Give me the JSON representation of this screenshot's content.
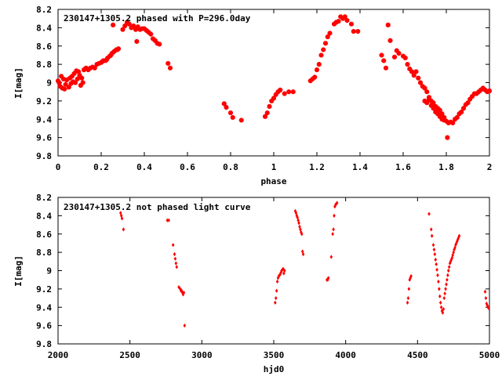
{
  "chart_data": [
    {
      "type": "scatter",
      "title": "230147+1305.2 phased with P=296.0day",
      "xlabel": "phase",
      "ylabel": "I[mag]",
      "xlim": [
        0,
        2
      ],
      "ylim": [
        9.8,
        8.2
      ],
      "y_inverted": true,
      "grid": false,
      "marker_color": "#ff0000",
      "x_ticks": [
        "0",
        "0.2",
        "0.4",
        "0.6",
        "0.8",
        "1",
        "1.2",
        "1.4",
        "1.6",
        "1.8",
        "2"
      ],
      "y_ticks": [
        "8.2",
        "8.4",
        "8.6",
        "8.8",
        "9",
        "9.2",
        "9.4",
        "9.6",
        "9.8"
      ],
      "x_tick_values": [
        0,
        0.2,
        0.4,
        0.6,
        0.8,
        1.0,
        1.2,
        1.4,
        1.6,
        1.8,
        2.0
      ],
      "y_tick_values": [
        8.2,
        8.4,
        8.6,
        8.8,
        9.0,
        9.2,
        9.4,
        9.6,
        9.8
      ],
      "points": [
        [
          0.0,
          8.98
        ],
        [
          0.005,
          9.0
        ],
        [
          0.01,
          9.04
        ],
        [
          0.015,
          8.93
        ],
        [
          0.02,
          9.06
        ],
        [
          0.025,
          8.96
        ],
        [
          0.03,
          9.07
        ],
        [
          0.035,
          9.02
        ],
        [
          0.04,
          8.97
        ],
        [
          0.05,
          9.05
        ],
        [
          0.055,
          8.95
        ],
        [
          0.06,
          9.01
        ],
        [
          0.065,
          8.93
        ],
        [
          0.07,
          8.99
        ],
        [
          0.075,
          8.9
        ],
        [
          0.08,
          9.0
        ],
        [
          0.085,
          8.87
        ],
        [
          0.09,
          8.96
        ],
        [
          0.095,
          8.88
        ],
        [
          0.1,
          8.92
        ],
        [
          0.105,
          9.03
        ],
        [
          0.11,
          8.95
        ],
        [
          0.115,
          9.0
        ],
        [
          0.12,
          8.86
        ],
        [
          0.125,
          8.85
        ],
        [
          0.13,
          8.84
        ],
        [
          0.14,
          8.86
        ],
        [
          0.15,
          8.84
        ],
        [
          0.16,
          8.83
        ],
        [
          0.17,
          8.84
        ],
        [
          0.18,
          8.8
        ],
        [
          0.19,
          8.79
        ],
        [
          0.2,
          8.78
        ],
        [
          0.205,
          8.77
        ],
        [
          0.21,
          8.76
        ],
        [
          0.22,
          8.76
        ],
        [
          0.225,
          8.75
        ],
        [
          0.23,
          8.73
        ],
        [
          0.24,
          8.71
        ],
        [
          0.245,
          8.7
        ],
        [
          0.25,
          8.68
        ],
        [
          0.255,
          8.37
        ],
        [
          0.26,
          8.66
        ],
        [
          0.27,
          8.64
        ],
        [
          0.275,
          8.64
        ],
        [
          0.28,
          8.63
        ],
        [
          0.3,
          8.42
        ],
        [
          0.31,
          8.38
        ],
        [
          0.32,
          8.34
        ],
        [
          0.33,
          8.36
        ],
        [
          0.34,
          8.4
        ],
        [
          0.35,
          8.38
        ],
        [
          0.36,
          8.42
        ],
        [
          0.365,
          8.55
        ],
        [
          0.37,
          8.39
        ],
        [
          0.38,
          8.42
        ],
        [
          0.39,
          8.41
        ],
        [
          0.4,
          8.41
        ],
        [
          0.41,
          8.43
        ],
        [
          0.42,
          8.45
        ],
        [
          0.43,
          8.47
        ],
        [
          0.44,
          8.52
        ],
        [
          0.45,
          8.54
        ],
        [
          0.46,
          8.57
        ],
        [
          0.47,
          8.58
        ],
        [
          0.51,
          8.79
        ],
        [
          0.52,
          8.84
        ],
        [
          0.77,
          9.23
        ],
        [
          0.78,
          9.27
        ],
        [
          0.8,
          9.33
        ],
        [
          0.81,
          9.38
        ],
        [
          0.85,
          9.41
        ],
        [
          0.96,
          9.37
        ],
        [
          0.97,
          9.33
        ],
        [
          0.98,
          9.26
        ],
        [
          0.99,
          9.2
        ],
        [
          1.0,
          9.17
        ],
        [
          1.01,
          9.13
        ],
        [
          1.02,
          9.1
        ],
        [
          1.03,
          9.08
        ],
        [
          1.05,
          9.12
        ],
        [
          1.07,
          9.1
        ],
        [
          1.09,
          9.1
        ],
        [
          1.17,
          8.98
        ],
        [
          1.18,
          8.96
        ],
        [
          1.19,
          8.94
        ],
        [
          1.2,
          8.86
        ],
        [
          1.21,
          8.8
        ],
        [
          1.22,
          8.7
        ],
        [
          1.23,
          8.64
        ],
        [
          1.24,
          8.57
        ],
        [
          1.25,
          8.5
        ],
        [
          1.26,
          8.46
        ],
        [
          1.28,
          8.36
        ],
        [
          1.29,
          8.34
        ],
        [
          1.3,
          8.33
        ],
        [
          1.31,
          8.28
        ],
        [
          1.32,
          8.3
        ],
        [
          1.33,
          8.28
        ],
        [
          1.34,
          8.32
        ],
        [
          1.36,
          8.36
        ],
        [
          1.37,
          8.44
        ],
        [
          1.39,
          8.44
        ],
        [
          1.5,
          8.7
        ],
        [
          1.51,
          8.76
        ],
        [
          1.52,
          8.84
        ],
        [
          1.53,
          8.37
        ],
        [
          1.54,
          8.54
        ],
        [
          1.56,
          8.72
        ],
        [
          1.57,
          8.65
        ],
        [
          1.58,
          8.68
        ],
        [
          1.6,
          8.71
        ],
        [
          1.61,
          8.73
        ],
        [
          1.62,
          8.8
        ],
        [
          1.63,
          8.85
        ],
        [
          1.64,
          8.88
        ],
        [
          1.65,
          8.92
        ],
        [
          1.66,
          8.88
        ],
        [
          1.67,
          8.95
        ],
        [
          1.68,
          9.0
        ],
        [
          1.69,
          9.04
        ],
        [
          1.7,
          9.06
        ],
        [
          1.71,
          9.1
        ],
        [
          1.72,
          9.16
        ],
        [
          1.73,
          9.2
        ],
        [
          1.74,
          9.22
        ],
        [
          1.75,
          9.26
        ],
        [
          1.76,
          9.28
        ],
        [
          1.77,
          9.3
        ],
        [
          1.78,
          9.34
        ],
        [
          1.79,
          9.38
        ],
        [
          1.8,
          9.42
        ],
        [
          1.805,
          9.6
        ],
        [
          1.81,
          9.44
        ],
        [
          1.82,
          9.43
        ],
        [
          1.83,
          9.44
        ],
        [
          1.84,
          9.4
        ],
        [
          1.85,
          9.38
        ],
        [
          1.86,
          9.34
        ],
        [
          1.87,
          9.32
        ],
        [
          1.88,
          9.28
        ],
        [
          1.89,
          9.24
        ],
        [
          1.9,
          9.22
        ],
        [
          1.91,
          9.18
        ],
        [
          1.92,
          9.15
        ],
        [
          1.93,
          9.12
        ],
        [
          1.94,
          9.12
        ],
        [
          1.95,
          9.1
        ],
        [
          1.96,
          9.08
        ],
        [
          1.97,
          9.06
        ],
        [
          1.98,
          9.08
        ],
        [
          1.99,
          9.1
        ],
        [
          2.0,
          9.09
        ],
        [
          1.7,
          9.2
        ],
        [
          1.71,
          9.22
        ],
        [
          1.72,
          9.18
        ],
        [
          1.73,
          9.25
        ],
        [
          1.74,
          9.28
        ],
        [
          1.75,
          9.32
        ],
        [
          1.76,
          9.34
        ],
        [
          1.77,
          9.37
        ],
        [
          1.78,
          9.4
        ],
        [
          1.79,
          9.41
        ]
      ]
    },
    {
      "type": "scatter",
      "title": "230147+1305.2 not phased light curve",
      "xlabel": "hjd0",
      "ylabel": "I[mag]",
      "xlim": [
        2000,
        5000
      ],
      "ylim": [
        9.8,
        8.2
      ],
      "y_inverted": true,
      "grid": false,
      "marker_color": "#ff0000",
      "x_ticks": [
        "2000",
        "2500",
        "3000",
        "3500",
        "4000",
        "4500",
        "5000"
      ],
      "y_ticks": [
        "8.2",
        "8.4",
        "8.6",
        "8.8",
        "9",
        "9.2",
        "9.4",
        "9.6",
        "9.8"
      ],
      "x_tick_values": [
        2000,
        2500,
        3000,
        3500,
        4000,
        4500,
        5000
      ],
      "y_tick_values": [
        8.2,
        8.4,
        8.6,
        8.8,
        9.0,
        9.2,
        9.4,
        9.6,
        9.8
      ],
      "points": [
        [
          2435,
          8.37
        ],
        [
          2440,
          8.4
        ],
        [
          2445,
          8.43
        ],
        [
          2455,
          8.55
        ],
        [
          2760,
          8.45
        ],
        [
          2770,
          8.45
        ],
        [
          2800,
          8.72
        ],
        [
          2810,
          8.82
        ],
        [
          2815,
          8.87
        ],
        [
          2820,
          8.92
        ],
        [
          2825,
          8.96
        ],
        [
          2840,
          9.18
        ],
        [
          2850,
          9.2
        ],
        [
          2855,
          9.22
        ],
        [
          2860,
          9.22
        ],
        [
          2865,
          9.24
        ],
        [
          2870,
          9.26
        ],
        [
          2875,
          9.24
        ],
        [
          2880,
          9.6
        ],
        [
          3510,
          9.35
        ],
        [
          3515,
          9.3
        ],
        [
          3520,
          9.22
        ],
        [
          3525,
          9.12
        ],
        [
          3530,
          9.08
        ],
        [
          3535,
          9.06
        ],
        [
          3540,
          9.05
        ],
        [
          3545,
          9.04
        ],
        [
          3550,
          9.02
        ],
        [
          3555,
          9.0
        ],
        [
          3560,
          8.99
        ],
        [
          3565,
          8.98
        ],
        [
          3570,
          9.03
        ],
        [
          3575,
          9.0
        ],
        [
          3650,
          8.35
        ],
        [
          3655,
          8.37
        ],
        [
          3660,
          8.4
        ],
        [
          3665,
          8.42
        ],
        [
          3670,
          8.45
        ],
        [
          3675,
          8.48
        ],
        [
          3680,
          8.52
        ],
        [
          3685,
          8.55
        ],
        [
          3690,
          8.58
        ],
        [
          3695,
          8.6
        ],
        [
          3700,
          8.79
        ],
        [
          3705,
          8.82
        ],
        [
          3870,
          9.1
        ],
        [
          3875,
          9.1
        ],
        [
          3880,
          9.08
        ],
        [
          3900,
          8.85
        ],
        [
          3910,
          8.6
        ],
        [
          3915,
          8.55
        ],
        [
          3920,
          8.4
        ],
        [
          3925,
          8.3
        ],
        [
          3930,
          8.28
        ],
        [
          3935,
          8.27
        ],
        [
          3940,
          8.26
        ],
        [
          4430,
          9.35
        ],
        [
          4435,
          9.3
        ],
        [
          4440,
          9.2
        ],
        [
          4445,
          9.1
        ],
        [
          4450,
          9.08
        ],
        [
          4455,
          9.06
        ],
        [
          4580,
          8.38
        ],
        [
          4595,
          8.55
        ],
        [
          4600,
          8.62
        ],
        [
          4610,
          8.72
        ],
        [
          4615,
          8.77
        ],
        [
          4620,
          8.82
        ],
        [
          4625,
          8.88
        ],
        [
          4630,
          8.93
        ],
        [
          4635,
          8.99
        ],
        [
          4640,
          9.05
        ],
        [
          4645,
          9.12
        ],
        [
          4650,
          9.2
        ],
        [
          4655,
          9.28
        ],
        [
          4660,
          9.35
        ],
        [
          4665,
          9.4
        ],
        [
          4670,
          9.44
        ],
        [
          4675,
          9.46
        ],
        [
          4680,
          9.42
        ],
        [
          4685,
          9.3
        ],
        [
          4690,
          9.25
        ],
        [
          4695,
          9.2
        ],
        [
          4700,
          9.15
        ],
        [
          4705,
          9.1
        ],
        [
          4710,
          9.05
        ],
        [
          4715,
          9.0
        ],
        [
          4720,
          8.96
        ],
        [
          4725,
          8.92
        ],
        [
          4730,
          8.9
        ],
        [
          4735,
          8.88
        ],
        [
          4740,
          8.86
        ],
        [
          4745,
          8.83
        ],
        [
          4750,
          8.8
        ],
        [
          4755,
          8.77
        ],
        [
          4760,
          8.75
        ],
        [
          4765,
          8.72
        ],
        [
          4770,
          8.7
        ],
        [
          4775,
          8.68
        ],
        [
          4780,
          8.66
        ],
        [
          4785,
          8.64
        ],
        [
          4790,
          8.62
        ],
        [
          4970,
          9.23
        ],
        [
          4975,
          9.3
        ],
        [
          4980,
          9.36
        ],
        [
          4985,
          9.38
        ],
        [
          4990,
          9.4
        ],
        [
          4995,
          9.41
        ]
      ]
    }
  ]
}
